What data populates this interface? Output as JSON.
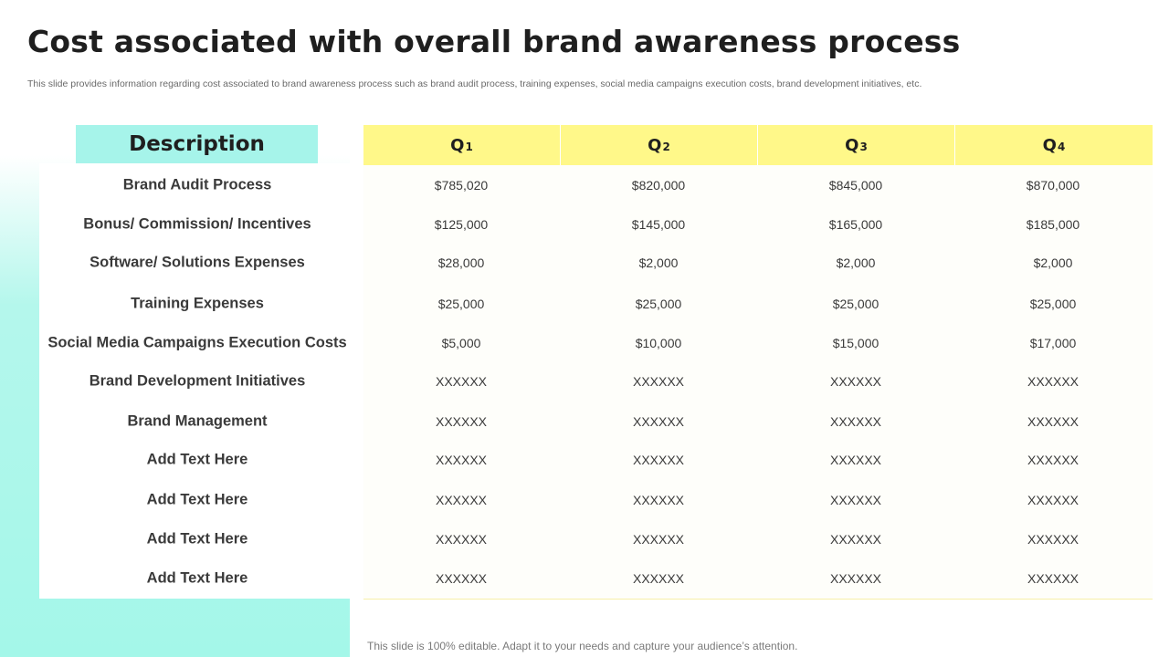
{
  "slide": {
    "title": "Cost associated with overall brand awareness process",
    "subtitle": "This slide provides information regarding cost associated to brand awareness process such as brand audit process, training expenses, social media campaigns execution costs, brand development initiatives, etc.",
    "footer": "This slide is 100% editable. Adapt it to your needs and capture your audience’s attention."
  },
  "table": {
    "description_header": "Description",
    "quarters": [
      {
        "letter": "Q",
        "number": "1"
      },
      {
        "letter": "Q",
        "number": "2"
      },
      {
        "letter": "Q",
        "number": "3"
      },
      {
        "letter": "Q",
        "number": "4"
      }
    ],
    "rows": [
      {
        "label": "Brand Audit Process",
        "values": [
          "$785,020",
          "$820,000",
          "$845,000",
          "$870,000"
        ]
      },
      {
        "label": "Bonus/ Commission/ Incentives",
        "values": [
          "$125,000",
          "$145,000",
          "$165,000",
          "$185,000"
        ]
      },
      {
        "label": "Software/ Solutions  Expenses",
        "values": [
          "$28,000",
          "$2,000",
          "$2,000",
          "$2,000"
        ]
      },
      {
        "label": "Training Expenses",
        "values": [
          "$25,000",
          "$25,000",
          "$25,000",
          "$25,000"
        ]
      },
      {
        "label": "Social Media Campaigns Execution Costs",
        "values": [
          "$5,000",
          "$10,000",
          "$15,000",
          "$17,000"
        ]
      },
      {
        "label": "Brand Development Initiatives",
        "values": [
          "XXXXXX",
          "XXXXXX",
          "XXXXXX",
          "XXXXXX"
        ]
      },
      {
        "label": "Brand Management",
        "values": [
          "XXXXXX",
          "XXXXXX",
          "XXXXXX",
          "XXXXXX"
        ]
      },
      {
        "label": "Add Text Here",
        "values": [
          "XXXXXX",
          "XXXXXX",
          "XXXXXX",
          "XXXXXX"
        ]
      },
      {
        "label": "Add Text Here",
        "values": [
          "XXXXXX",
          "XXXXXX",
          "XXXXXX",
          "XXXXXX"
        ]
      },
      {
        "label": "Add Text Here",
        "values": [
          "XXXXXX",
          "XXXXXX",
          "XXXXXX",
          "XXXXXX"
        ]
      },
      {
        "label": "Add Text Here",
        "values": [
          "XXXXXX",
          "XXXXXX",
          "XXXXXX",
          "XXXXXX"
        ]
      }
    ]
  },
  "colors": {
    "description_header_bg": "#a6f4ea",
    "quarter_header_bg": "#fff889",
    "accent_gradient": "#a4f7e9"
  }
}
